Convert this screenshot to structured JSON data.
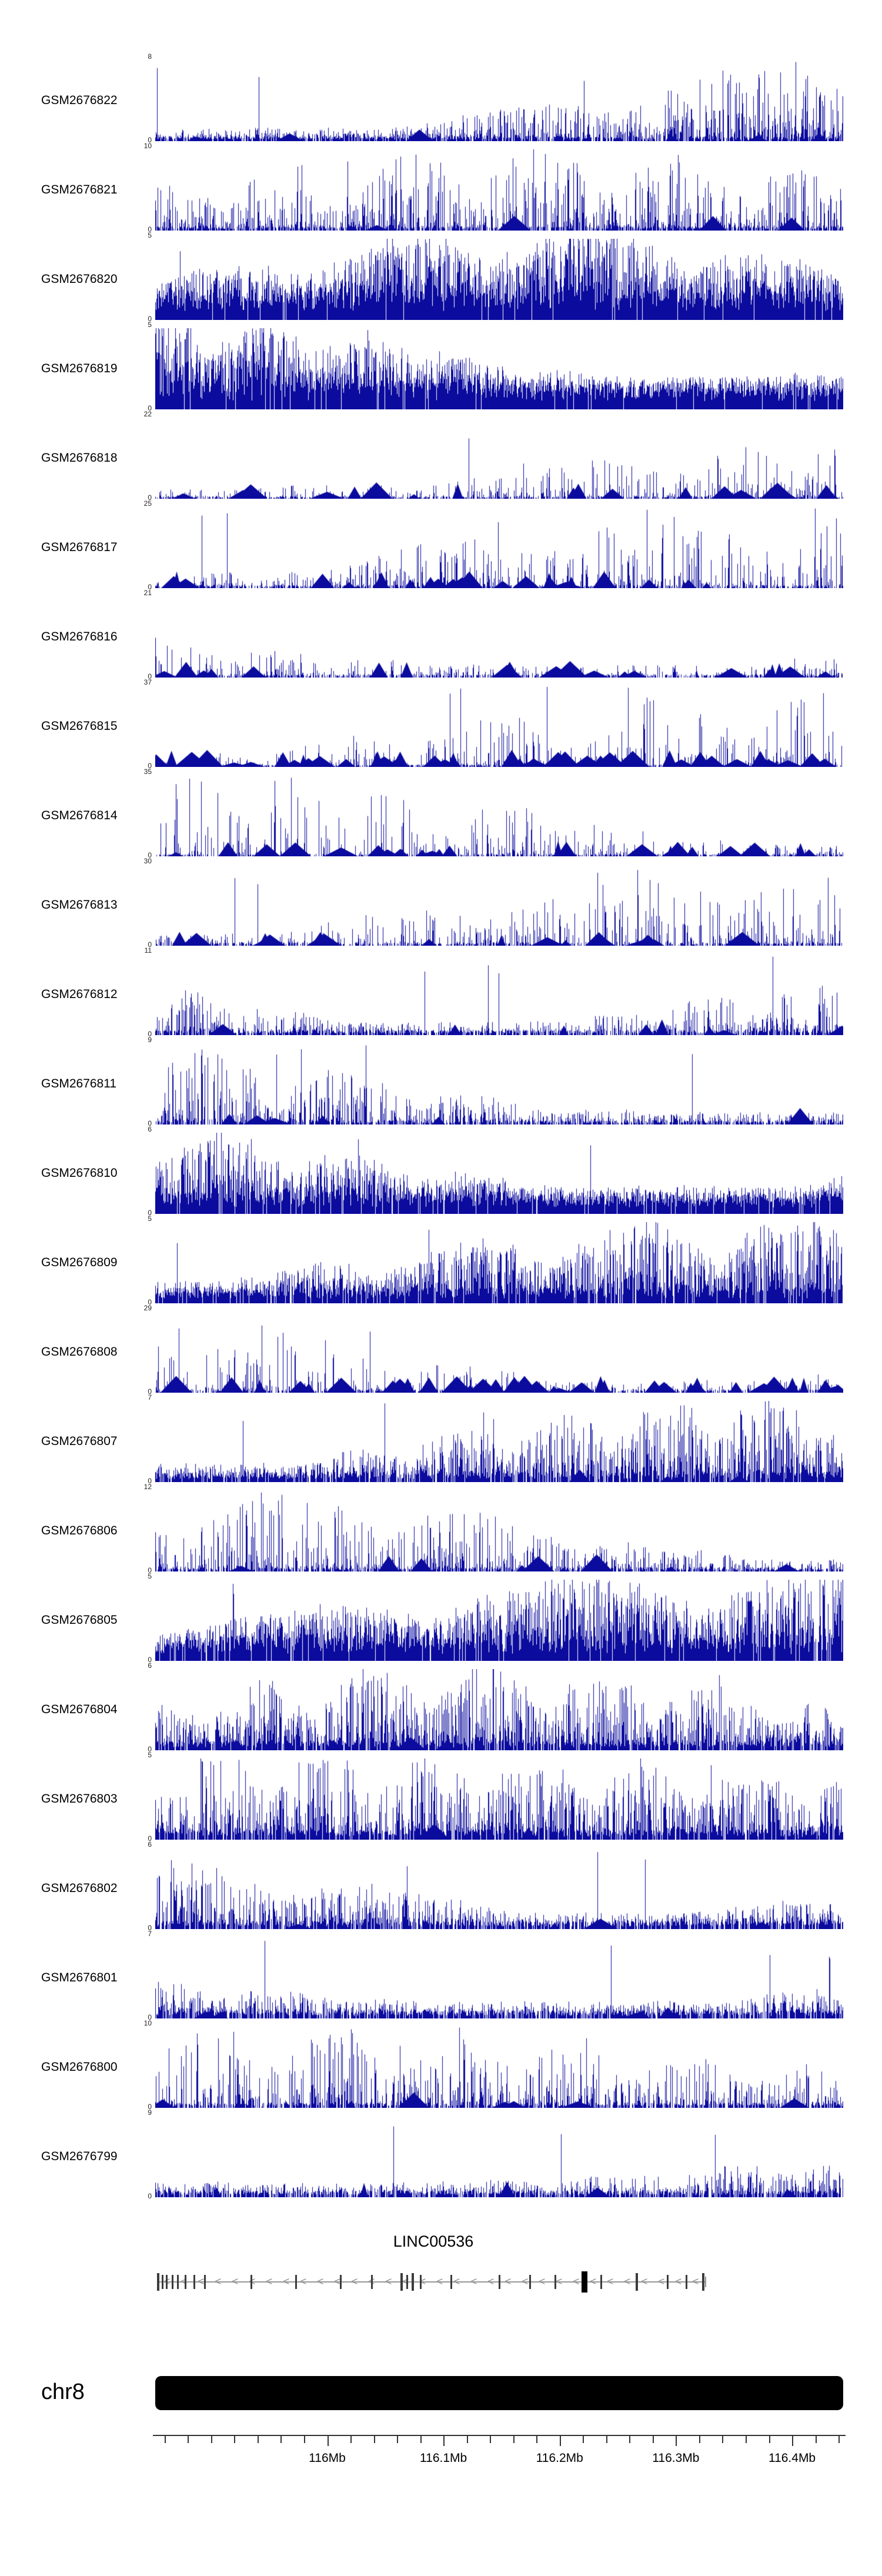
{
  "style": {
    "background": "#ffffff",
    "track_color": "#0b0b9e",
    "gene_line_color": "#8f8f8f",
    "exon_color": "#3c3c3c",
    "dark_exon_color": "#000000",
    "ideogram_color": "#000000",
    "axis_color": "#333333"
  },
  "chart_data": {
    "type": "area",
    "description": "Genome browser coverage histograms for 24 GEO samples over chr8 around LINC00536",
    "region": {
      "chromosome": "chr8",
      "start_mb": 115.852,
      "end_mb": 116.444
    },
    "x_axis": {
      "minor_interval_mb": 0.02,
      "ticks": [
        {
          "label": "116Mb",
          "mb": 116.0
        },
        {
          "label": "116.1Mb",
          "mb": 116.1
        },
        {
          "label": "116.2Mb",
          "mb": 116.2
        },
        {
          "label": "116.3Mb",
          "mb": 116.3
        },
        {
          "label": "116.4Mb",
          "mb": 116.4
        }
      ]
    },
    "tracks": [
      {
        "label": "GSM2676822",
        "ymin": 0,
        "ymax": 8,
        "profile": {
          "seed": 101,
          "density": 0.8,
          "base": 0.06,
          "pow": 3.2,
          "tall": 0.004,
          "blobs": 6
        }
      },
      {
        "label": "GSM2676821",
        "ymin": 0,
        "ymax": 10,
        "profile": {
          "seed": 102,
          "density": 0.75,
          "base": 0.05,
          "pow": 3.4,
          "tall": 0.003,
          "blobs": 5
        }
      },
      {
        "label": "GSM2676820",
        "ymin": 0,
        "ymax": 5,
        "profile": {
          "seed": 103,
          "density": 0.97,
          "base": 0.3,
          "pow": 1.25,
          "tall": 0.002,
          "blobs": 0
        }
      },
      {
        "label": "GSM2676819",
        "ymin": 0,
        "ymax": 5,
        "profile": {
          "seed": 104,
          "density": 0.97,
          "base": 0.32,
          "pow": 1.2,
          "tall": 0.002,
          "blobs": 0
        }
      },
      {
        "label": "GSM2676818",
        "ymin": 0,
        "ymax": 22,
        "profile": {
          "seed": 105,
          "density": 0.6,
          "base": 0.03,
          "pow": 5.5,
          "tall": 0.0025,
          "blobs": 18
        }
      },
      {
        "label": "GSM2676817",
        "ymin": 0,
        "ymax": 25,
        "profile": {
          "seed": 106,
          "density": 0.62,
          "base": 0.04,
          "pow": 5.0,
          "tall": 0.003,
          "blobs": 26
        }
      },
      {
        "label": "GSM2676816",
        "ymin": 0,
        "ymax": 21,
        "profile": {
          "seed": 107,
          "density": 0.62,
          "base": 0.04,
          "pow": 5.0,
          "tall": 0.003,
          "blobs": 22
        }
      },
      {
        "label": "GSM2676815",
        "ymin": 0,
        "ymax": 37,
        "profile": {
          "seed": 108,
          "density": 0.6,
          "base": 0.03,
          "pow": 6.0,
          "tall": 0.003,
          "blobs": 55
        }
      },
      {
        "label": "GSM2676814",
        "ymin": 0,
        "ymax": 35,
        "profile": {
          "seed": 109,
          "density": 0.55,
          "base": 0.03,
          "pow": 6.0,
          "tall": 0.0025,
          "blobs": 24
        }
      },
      {
        "label": "GSM2676813",
        "ymin": 0,
        "ymax": 30,
        "profile": {
          "seed": 110,
          "density": 0.6,
          "base": 0.04,
          "pow": 5.0,
          "tall": 0.003,
          "blobs": 18
        }
      },
      {
        "label": "GSM2676812",
        "ymin": 0,
        "ymax": 11,
        "profile": {
          "seed": 111,
          "density": 0.72,
          "base": 0.06,
          "pow": 3.6,
          "tall": 0.003,
          "blobs": 8
        }
      },
      {
        "label": "GSM2676811",
        "ymin": 0,
        "ymax": 9,
        "profile": {
          "seed": 112,
          "density": 0.7,
          "base": 0.05,
          "pow": 3.4,
          "tall": 0.004,
          "blobs": 6
        }
      },
      {
        "label": "GSM2676810",
        "ymin": 0,
        "ymax": 6,
        "profile": {
          "seed": 113,
          "density": 0.95,
          "base": 0.25,
          "pow": 1.5,
          "tall": 0.002,
          "blobs": 0
        }
      },
      {
        "label": "GSM2676809",
        "ymin": 0,
        "ymax": 5,
        "profile": {
          "seed": 114,
          "density": 0.9,
          "base": 0.18,
          "pow": 1.8,
          "tall": 0.002,
          "blobs": 0
        }
      },
      {
        "label": "GSM2676808",
        "ymin": 0,
        "ymax": 29,
        "profile": {
          "seed": 115,
          "density": 0.6,
          "base": 0.04,
          "pow": 5.5,
          "tall": 0.003,
          "blobs": 45
        }
      },
      {
        "label": "GSM2676807",
        "ymin": 0,
        "ymax": 7,
        "profile": {
          "seed": 116,
          "density": 0.85,
          "base": 0.12,
          "pow": 2.4,
          "tall": 0.003,
          "blobs": 4
        }
      },
      {
        "label": "GSM2676806",
        "ymin": 0,
        "ymax": 12,
        "profile": {
          "seed": 117,
          "density": 0.68,
          "base": 0.05,
          "pow": 4.0,
          "tall": 0.0025,
          "blobs": 8
        }
      },
      {
        "label": "GSM2676805",
        "ymin": 0,
        "ymax": 5,
        "profile": {
          "seed": 118,
          "density": 0.95,
          "base": 0.26,
          "pow": 1.4,
          "tall": 0.002,
          "blobs": 0
        }
      },
      {
        "label": "GSM2676804",
        "ymin": 0,
        "ymax": 6,
        "profile": {
          "seed": 119,
          "density": 0.85,
          "base": 0.12,
          "pow": 2.6,
          "tall": 0.003,
          "blobs": 3
        }
      },
      {
        "label": "GSM2676803",
        "ymin": 0,
        "ymax": 5,
        "profile": {
          "seed": 120,
          "density": 0.85,
          "base": 0.12,
          "pow": 2.6,
          "tall": 0.003,
          "blobs": 3
        }
      },
      {
        "label": "GSM2676802",
        "ymin": 0,
        "ymax": 6,
        "profile": {
          "seed": 121,
          "density": 0.8,
          "base": 0.1,
          "pow": 2.8,
          "tall": 0.003,
          "blobs": 4
        }
      },
      {
        "label": "GSM2676801",
        "ymin": 0,
        "ymax": 7,
        "profile": {
          "seed": 122,
          "density": 0.8,
          "base": 0.1,
          "pow": 2.8,
          "tall": 0.003,
          "blobs": 4
        }
      },
      {
        "label": "GSM2676800",
        "ymin": 0,
        "ymax": 10,
        "profile": {
          "seed": 123,
          "density": 0.7,
          "base": 0.06,
          "pow": 3.6,
          "tall": 0.003,
          "blobs": 6
        }
      },
      {
        "label": "GSM2676799",
        "ymin": 0,
        "ymax": 9,
        "profile": {
          "seed": 124,
          "density": 0.75,
          "base": 0.08,
          "pow": 3.2,
          "tall": 0.003,
          "blobs": 5
        }
      }
    ],
    "gene": {
      "name": "LINC00536",
      "strand": "-",
      "span": [
        0.005,
        0.8
      ],
      "exons": [
        {
          "p": 0.004,
          "s": "m"
        },
        {
          "p": 0.011,
          "s": "s"
        },
        {
          "p": 0.017,
          "s": "s"
        },
        {
          "p": 0.025,
          "s": "s"
        },
        {
          "p": 0.033,
          "s": "s"
        },
        {
          "p": 0.044,
          "s": "s"
        },
        {
          "p": 0.057,
          "s": "s"
        },
        {
          "p": 0.072,
          "s": "s"
        },
        {
          "p": 0.14,
          "s": "s"
        },
        {
          "p": 0.205,
          "s": "s"
        },
        {
          "p": 0.27,
          "s": "s"
        },
        {
          "p": 0.315,
          "s": "s"
        },
        {
          "p": 0.358,
          "s": "m"
        },
        {
          "p": 0.366,
          "s": "s"
        },
        {
          "p": 0.374,
          "s": "m"
        },
        {
          "p": 0.386,
          "s": "s"
        },
        {
          "p": 0.43,
          "s": "s"
        },
        {
          "p": 0.5,
          "s": "s"
        },
        {
          "p": 0.545,
          "s": "s"
        },
        {
          "p": 0.582,
          "s": "s"
        },
        {
          "p": 0.624,
          "s": "l"
        },
        {
          "p": 0.648,
          "s": "s"
        },
        {
          "p": 0.7,
          "s": "m"
        },
        {
          "p": 0.745,
          "s": "s"
        },
        {
          "p": 0.772,
          "s": "s"
        },
        {
          "p": 0.797,
          "s": "m"
        }
      ]
    }
  }
}
